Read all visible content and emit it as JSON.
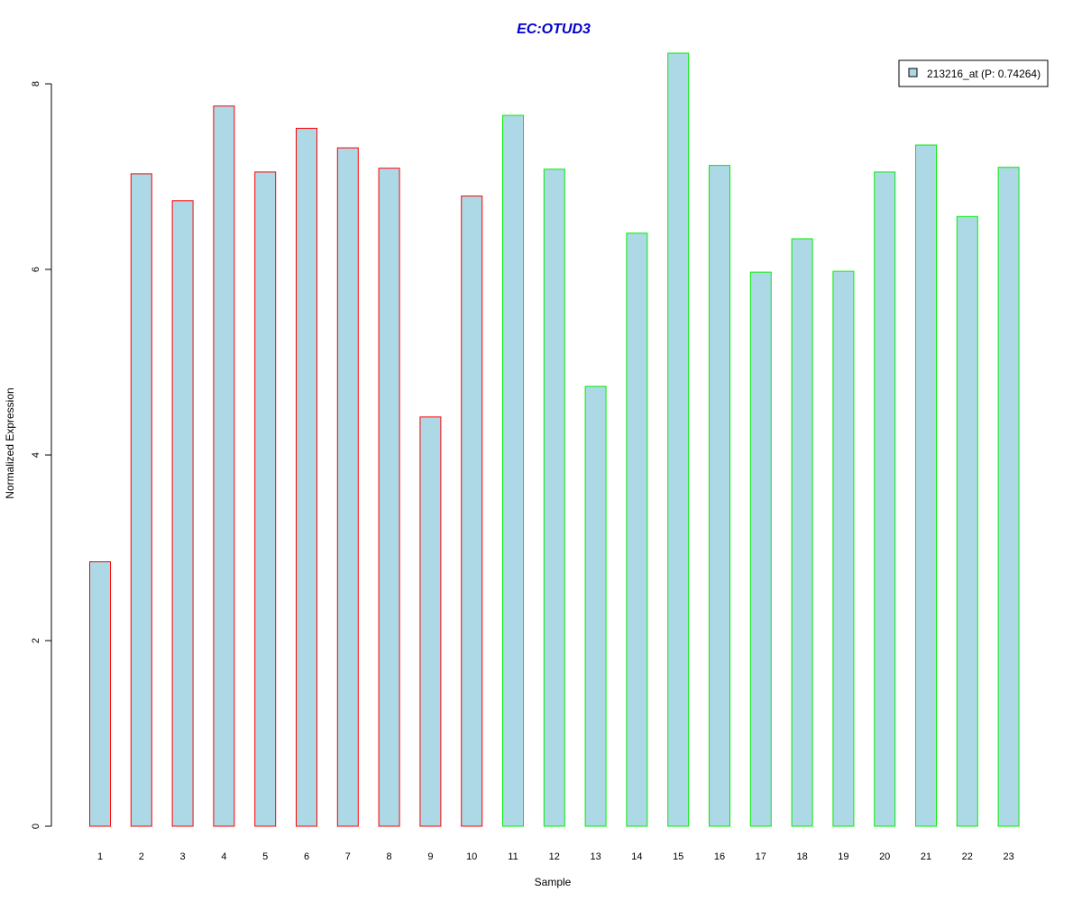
{
  "chart_data": {
    "type": "bar",
    "title": "EC:OTUD3",
    "title_color": "#0000CC",
    "xlabel": "Sample",
    "ylabel": "Normalized Expression",
    "categories": [
      "1",
      "2",
      "3",
      "4",
      "5",
      "6",
      "7",
      "8",
      "9",
      "10",
      "11",
      "12",
      "13",
      "14",
      "15",
      "16",
      "17",
      "18",
      "19",
      "20",
      "21",
      "22",
      "23"
    ],
    "series": [
      {
        "name": "213216_at (P: 0.74264)",
        "fill": "#ADD8E6",
        "values": [
          2.85,
          7.03,
          6.74,
          7.76,
          7.05,
          7.52,
          7.31,
          7.09,
          4.41,
          6.79,
          7.66,
          7.08,
          4.74,
          6.39,
          8.33,
          7.12,
          5.97,
          6.33,
          5.98,
          7.05,
          7.34,
          6.57,
          7.1
        ]
      }
    ],
    "groups": [
      {
        "border": "#FF0000",
        "samples": [
          "1",
          "2",
          "3",
          "4",
          "5",
          "6",
          "7",
          "8",
          "9",
          "10"
        ]
      },
      {
        "border": "#00EE00",
        "samples": [
          "11",
          "12",
          "13",
          "14",
          "15",
          "16",
          "17",
          "18",
          "19",
          "20",
          "21",
          "22",
          "23"
        ]
      }
    ],
    "ylim": [
      0,
      8.33
    ],
    "yticks": [
      0,
      2,
      4,
      6,
      8
    ],
    "grid": false,
    "legend_position": "top-right"
  }
}
